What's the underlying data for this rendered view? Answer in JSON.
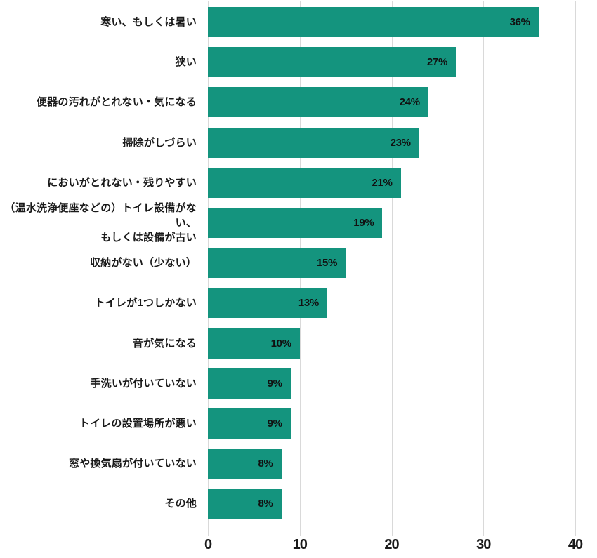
{
  "chart_data": {
    "type": "bar",
    "orientation": "horizontal",
    "title": "",
    "xlabel": "",
    "ylabel": "",
    "categories": [
      "寒い、もしくは暑い",
      "狭い",
      "便器の汚れがとれない・気になる",
      "掃除がしづらい",
      "においがとれない・残りやすい",
      "（温水洗浄便座などの）トイレ設備がない、\nもしくは設備が古い",
      "収納がない（少ない）",
      "トイレが1つしかない",
      "音が気になる",
      "手洗いが付いていない",
      "トイレの設置場所が悪い",
      "窓や換気扇が付いていない",
      "その他"
    ],
    "values": [
      36,
      27,
      24,
      23,
      21,
      19,
      15,
      13,
      10,
      9,
      9,
      8,
      8
    ],
    "value_labels": [
      "36%",
      "27%",
      "24%",
      "23%",
      "21%",
      "19%",
      "15%",
      "13%",
      "10%",
      "9%",
      "9%",
      "8%",
      "8%"
    ],
    "xlim": [
      0,
      40
    ],
    "x_ticks": [
      0,
      10,
      20,
      30,
      40
    ],
    "x_tick_labels": [
      "0",
      "10",
      "20",
      "30",
      "40"
    ],
    "grid": true,
    "legend": false,
    "bar_color": "#14947e",
    "gridline_color": "#d9d9d9",
    "text_color": "#1a1a1a",
    "value_label_color": "#111111",
    "background_color": "#ffffff"
  }
}
